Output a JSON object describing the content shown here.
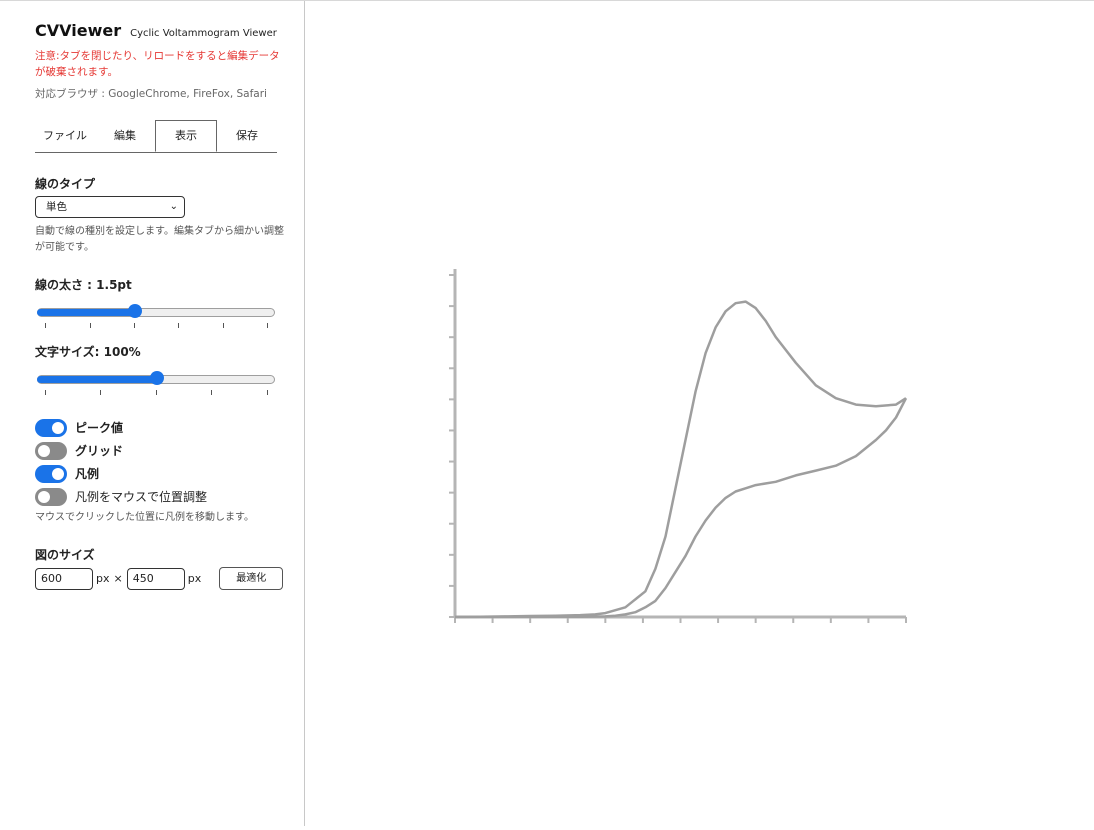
{
  "header": {
    "app_name": "CVViewer",
    "subtitle": "Cyclic Voltammogram Viewer",
    "warning": "注意:タブを閉じたり、リロードをすると編集データが破棄されます。",
    "browsers": "対応ブラウザ : GoogleChrome, FireFox, Safari"
  },
  "tabs": [
    {
      "label": "ファイル",
      "active": false
    },
    {
      "label": "編集",
      "active": false
    },
    {
      "label": "表示",
      "active": true
    },
    {
      "label": "保存",
      "active": false
    }
  ],
  "line_type": {
    "label": "線のタイプ",
    "selected": "単色",
    "help": "自動で線の種別を設定します。編集タブから細かい調整が可能です。"
  },
  "line_width": {
    "label": "線の太さ : 1.5pt",
    "value": 1.5
  },
  "font_size": {
    "label": "文字サイズ: 100%",
    "value": 100
  },
  "toggles": {
    "peak": {
      "label": "ピーク値",
      "on": true
    },
    "grid": {
      "label": "グリッド",
      "on": false
    },
    "legend": {
      "label": "凡例",
      "on": true
    },
    "legend_mouse": {
      "label": "凡例をマウスで位置調整",
      "on": false
    },
    "legend_help": "マウスでクリックした位置に凡例を移動します。"
  },
  "figure_size": {
    "label": "図のサイズ",
    "width": "600",
    "height": "450",
    "unit": "px",
    "times": "×",
    "optimize_label": "最適化"
  },
  "colors": {
    "accent": "#1a73e8",
    "warning": "#e53935",
    "curve": "#9e9e9e"
  },
  "chart_data": {
    "type": "line",
    "series": [
      {
        "x": [
          0.0,
          0.05,
          0.1,
          0.15,
          0.2,
          0.25,
          0.28,
          0.3,
          0.34,
          0.38,
          0.4,
          0.42,
          0.44,
          0.46,
          0.48,
          0.5,
          0.52,
          0.54,
          0.56,
          0.58,
          0.6,
          0.62,
          0.64,
          0.68,
          0.72,
          0.76,
          0.8,
          0.84,
          0.88,
          0.9
        ],
        "y": [
          0.0,
          0.001,
          0.002,
          0.003,
          0.004,
          0.006,
          0.008,
          0.012,
          0.03,
          0.08,
          0.15,
          0.25,
          0.4,
          0.55,
          0.7,
          0.82,
          0.9,
          0.95,
          0.975,
          0.98,
          0.96,
          0.92,
          0.87,
          0.79,
          0.72,
          0.68,
          0.66,
          0.655,
          0.66,
          0.68
        ]
      },
      {
        "x": [
          0.9,
          0.88,
          0.86,
          0.84,
          0.8,
          0.76,
          0.72,
          0.68,
          0.64,
          0.6,
          0.58,
          0.56,
          0.54,
          0.52,
          0.5,
          0.48,
          0.46,
          0.44,
          0.42,
          0.4,
          0.38,
          0.36,
          0.34,
          0.32,
          0.3,
          0.25,
          0.2,
          0.1,
          0.0
        ],
        "y": [
          0.68,
          0.62,
          0.58,
          0.55,
          0.5,
          0.47,
          0.455,
          0.44,
          0.42,
          0.41,
          0.4,
          0.39,
          0.37,
          0.34,
          0.3,
          0.25,
          0.19,
          0.14,
          0.09,
          0.05,
          0.03,
          0.015,
          0.008,
          0.004,
          0.002,
          0.001,
          0.0008,
          0.0003,
          0.0
        ]
      }
    ],
    "xlim": [
      0.0,
      0.9
    ],
    "ylim": [
      0.0,
      1.1
    ],
    "grid": false,
    "legend": "top-left"
  }
}
